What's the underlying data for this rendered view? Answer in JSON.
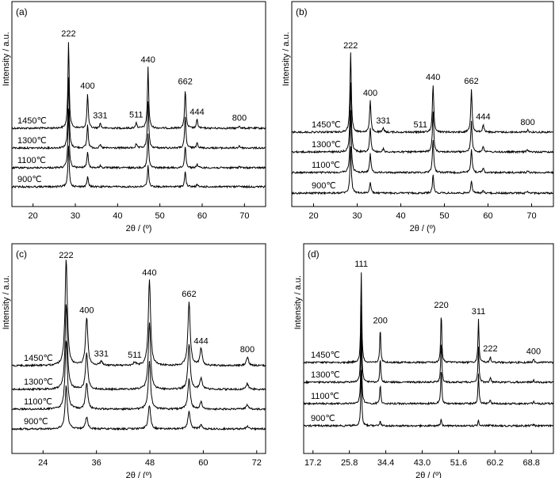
{
  "figure_title": "",
  "chart_data": [
    {
      "type": "line",
      "panel_label": "(a)",
      "xlabel": "2θ / (º)",
      "ylabel": "Intensity / a.u.",
      "xlim": [
        15,
        75
      ],
      "x_ticks": [
        20,
        30,
        40,
        50,
        60,
        70
      ],
      "x_tick_labels": [
        "20",
        "30",
        "40",
        "50",
        "60",
        "70"
      ],
      "series": [
        {
          "name": "1450℃",
          "baseline": 0.0,
          "peaks": [
            [
              28.4,
              1.0
            ],
            [
              32.9,
              0.4
            ],
            [
              35.9,
              0.06
            ],
            [
              44.4,
              0.07
            ],
            [
              47.2,
              0.7
            ],
            [
              56.0,
              0.45
            ],
            [
              58.8,
              0.1
            ],
            [
              68.8,
              0.03
            ]
          ]
        },
        {
          "name": "1300℃",
          "baseline": 0.0,
          "peaks": [
            [
              28.4,
              0.9
            ],
            [
              32.9,
              0.3
            ],
            [
              35.9,
              0.04
            ],
            [
              44.4,
              0.05
            ],
            [
              47.2,
              0.6
            ],
            [
              56.0,
              0.4
            ],
            [
              58.8,
              0.08
            ],
            [
              68.8,
              0.03
            ]
          ]
        },
        {
          "name": "1100℃",
          "baseline": 0.0,
          "peaks": [
            [
              28.4,
              0.78
            ],
            [
              32.9,
              0.22
            ],
            [
              35.9,
              0.03
            ],
            [
              47.2,
              0.45
            ],
            [
              56.0,
              0.3
            ],
            [
              58.8,
              0.05
            ],
            [
              68.8,
              0.02
            ]
          ]
        },
        {
          "name": "900℃",
          "baseline": 0.0,
          "peaks": [
            [
              28.4,
              0.6
            ],
            [
              32.9,
              0.15
            ],
            [
              47.2,
              0.32
            ],
            [
              56.0,
              0.22
            ],
            [
              58.8,
              0.03
            ],
            [
              68.8,
              0.02
            ]
          ]
        }
      ],
      "annotations": [
        {
          "text": "222",
          "x": 28.4
        },
        {
          "text": "400",
          "x": 32.9
        },
        {
          "text": "331",
          "x": 35.9
        },
        {
          "text": "511",
          "x": 44.4
        },
        {
          "text": "440",
          "x": 47.2
        },
        {
          "text": "662",
          "x": 56.0
        },
        {
          "text": "444",
          "x": 58.8
        },
        {
          "text": "800",
          "x": 68.8
        }
      ]
    },
    {
      "type": "line",
      "panel_label": "(b)",
      "xlabel": "2θ / (º)",
      "ylabel": "Intensity / a.u.",
      "xlim": [
        15,
        75
      ],
      "x_ticks": [
        20,
        30,
        40,
        50,
        60,
        70
      ],
      "x_tick_labels": [
        "20",
        "30",
        "40",
        "50",
        "60",
        "70"
      ],
      "series": [
        {
          "name": "1450℃",
          "baseline": 0.0,
          "peaks": [
            [
              28.5,
              1.0
            ],
            [
              33.0,
              0.4
            ],
            [
              36.0,
              0.05
            ],
            [
              47.4,
              0.6
            ],
            [
              56.2,
              0.55
            ],
            [
              58.9,
              0.1
            ],
            [
              69.1,
              0.03
            ]
          ]
        },
        {
          "name": "1300℃",
          "baseline": 0.0,
          "peaks": [
            [
              28.5,
              0.9
            ],
            [
              33.0,
              0.32
            ],
            [
              36.0,
              0.04
            ],
            [
              47.4,
              0.52
            ],
            [
              56.2,
              0.4
            ],
            [
              58.9,
              0.08
            ],
            [
              69.1,
              0.03
            ]
          ]
        },
        {
          "name": "1100℃",
          "baseline": 0.0,
          "peaks": [
            [
              28.5,
              0.82
            ],
            [
              33.0,
              0.25
            ],
            [
              47.4,
              0.45
            ],
            [
              56.2,
              0.32
            ],
            [
              58.9,
              0.06
            ],
            [
              69.1,
              0.02
            ]
          ]
        },
        {
          "name": "900℃",
          "baseline": 0.0,
          "peaks": [
            [
              28.5,
              0.65
            ],
            [
              33.0,
              0.15
            ],
            [
              47.4,
              0.25
            ],
            [
              56.2,
              0.18
            ],
            [
              58.9,
              0.03
            ],
            [
              69.1,
              0.02
            ]
          ]
        }
      ],
      "annotations": [
        {
          "text": "222",
          "x": 28.5
        },
        {
          "text": "400",
          "x": 33.0
        },
        {
          "text": "331",
          "x": 36.0
        },
        {
          "text": "511",
          "x": 44.5
        },
        {
          "text": "440",
          "x": 47.4
        },
        {
          "text": "662",
          "x": 56.2
        },
        {
          "text": "444",
          "x": 58.9
        },
        {
          "text": "800",
          "x": 69.1
        }
      ]
    },
    {
      "type": "line",
      "panel_label": "(c)",
      "xlabel": "2θ / (º)",
      "ylabel": "Intensity / a.u.",
      "xlim": [
        17,
        74
      ],
      "x_ticks": [
        24,
        36,
        48,
        60,
        72
      ],
      "x_tick_labels": [
        "24",
        "36",
        "48",
        "60",
        "72"
      ],
      "series": [
        {
          "name": "1450℃",
          "baseline": 0.0,
          "peaks": [
            [
              29.2,
              1.0
            ],
            [
              33.8,
              0.45
            ],
            [
              37.1,
              0.04
            ],
            [
              44.6,
              0.03
            ],
            [
              47.9,
              0.8
            ],
            [
              56.8,
              0.6
            ],
            [
              59.5,
              0.16
            ],
            [
              69.9,
              0.08
            ]
          ]
        },
        {
          "name": "1300℃",
          "baseline": 0.0,
          "peaks": [
            [
              29.2,
              0.9
            ],
            [
              33.8,
              0.38
            ],
            [
              47.9,
              0.7
            ],
            [
              56.8,
              0.48
            ],
            [
              59.5,
              0.12
            ],
            [
              69.9,
              0.06
            ]
          ]
        },
        {
          "name": "1100℃",
          "baseline": 0.0,
          "peaks": [
            [
              29.2,
              0.8
            ],
            [
              33.8,
              0.3
            ],
            [
              47.9,
              0.55
            ],
            [
              56.8,
              0.35
            ],
            [
              59.5,
              0.08
            ],
            [
              69.9,
              0.05
            ]
          ]
        },
        {
          "name": "900℃",
          "baseline": 0.0,
          "peaks": [
            [
              29.2,
              0.55
            ],
            [
              33.8,
              0.15
            ],
            [
              47.9,
              0.3
            ],
            [
              56.8,
              0.22
            ],
            [
              59.5,
              0.05
            ],
            [
              69.9,
              0.04
            ]
          ]
        }
      ],
      "annotations": [
        {
          "text": "222",
          "x": 29.2
        },
        {
          "text": "400",
          "x": 33.8
        },
        {
          "text": "331",
          "x": 37.1
        },
        {
          "text": "511",
          "x": 44.6
        },
        {
          "text": "440",
          "x": 47.9
        },
        {
          "text": "662",
          "x": 56.8
        },
        {
          "text": "444",
          "x": 59.5
        },
        {
          "text": "800",
          "x": 69.9
        }
      ]
    },
    {
      "type": "line",
      "panel_label": "(d)",
      "xlabel": "2θ / (º)",
      "ylabel": "Intensity / a.u.",
      "xlim": [
        15,
        74
      ],
      "x_ticks": [
        17.2,
        25.8,
        34.4,
        43.0,
        51.6,
        60.2,
        68.8
      ],
      "x_tick_labels": [
        "17.2",
        "25.8",
        "34.4",
        "43.0",
        "51.6",
        "60.2",
        "68.8"
      ],
      "series": [
        {
          "name": "1450℃",
          "baseline": 0.0,
          "peaks": [
            [
              28.6,
              1.0
            ],
            [
              33.1,
              0.38
            ],
            [
              47.5,
              0.55
            ],
            [
              56.3,
              0.48
            ],
            [
              59.1,
              0.07
            ],
            [
              69.3,
              0.04
            ]
          ]
        },
        {
          "name": "1300℃",
          "baseline": 0.0,
          "peaks": [
            [
              28.6,
              0.95
            ],
            [
              33.1,
              0.3
            ],
            [
              47.5,
              0.5
            ],
            [
              56.3,
              0.42
            ],
            [
              59.1,
              0.06
            ],
            [
              69.3,
              0.03
            ]
          ]
        },
        {
          "name": "1100℃",
          "baseline": 0.0,
          "peaks": [
            [
              28.6,
              0.9
            ],
            [
              33.1,
              0.25
            ],
            [
              47.5,
              0.45
            ],
            [
              56.3,
              0.38
            ],
            [
              59.1,
              0.05
            ],
            [
              69.3,
              0.03
            ]
          ]
        },
        {
          "name": "900℃",
          "baseline": 0.0,
          "peaks": [
            [
              28.6,
              0.85
            ],
            [
              33.1,
              0.08
            ],
            [
              47.5,
              0.1
            ],
            [
              56.3,
              0.08
            ],
            [
              59.1,
              0.02
            ],
            [
              69.3,
              0.02
            ]
          ]
        }
      ],
      "annotations": [
        {
          "text": "111",
          "x": 28.6
        },
        {
          "text": "200",
          "x": 33.1
        },
        {
          "text": "220",
          "x": 47.5
        },
        {
          "text": "311",
          "x": 56.3
        },
        {
          "text": "222",
          "x": 59.1
        },
        {
          "text": "400",
          "x": 69.3
        }
      ]
    }
  ]
}
